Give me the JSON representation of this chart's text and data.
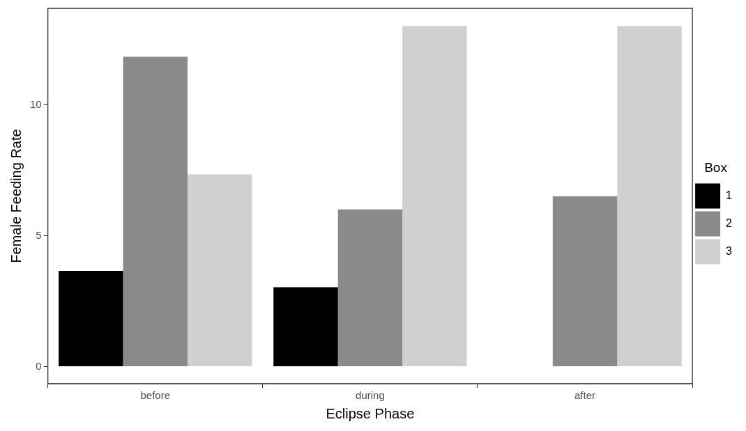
{
  "chart_data": {
    "type": "bar",
    "xlabel": "Eclipse Phase",
    "ylabel": "Female Feeding Rate",
    "legend_title": "Box",
    "categories": [
      "before",
      "during",
      "after"
    ],
    "series": [
      {
        "name": "1",
        "color": "#000000",
        "values": [
          3.66,
          3.03,
          null
        ]
      },
      {
        "name": "2",
        "color": "#8a8a8a",
        "values": [
          11.83,
          6.0,
          6.5
        ]
      },
      {
        "name": "3",
        "color": "#d0d0d0",
        "values": [
          7.34,
          13.0,
          13.0
        ]
      }
    ],
    "ylim": [
      -0.65,
      13.68
    ],
    "yticks": [
      0,
      5,
      10
    ],
    "grid": false,
    "legend": "right"
  }
}
